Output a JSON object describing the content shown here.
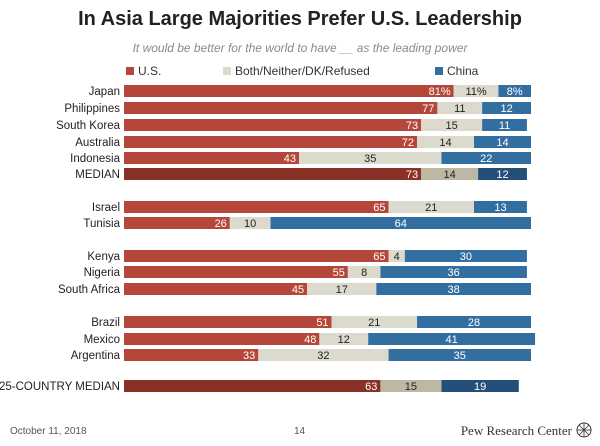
{
  "title": "In Asia Large Majorities Prefer U.S. Leadership",
  "subtitle": "It would be better for the world to have __ as the leading power",
  "legend": {
    "us": "U.S.",
    "both": "Both/Neither/DK/Refused",
    "china": "China"
  },
  "colors": {
    "us": "#b5473a",
    "us_median": "#893126",
    "both": "#dcd9cd",
    "both_median": "#bdb8a3",
    "china": "#336ea1",
    "china_median": "#234f78"
  },
  "footer": {
    "date": "October 11, 2018",
    "page": "14",
    "source": "Pew Research Center"
  },
  "chart_data": {
    "type": "bar",
    "orientation": "horizontal",
    "stacked": true,
    "xlim": [
      0,
      100
    ],
    "categories": [
      "Japan",
      "Philippines",
      "South Korea",
      "Australia",
      "Indonesia",
      "MEDIAN",
      "Israel",
      "Tunisia",
      "Kenya",
      "Nigeria",
      "South Africa",
      "Brazil",
      "Mexico",
      "Argentina",
      "25-COUNTRY MEDIAN"
    ],
    "series": [
      {
        "name": "U.S.",
        "values": [
          81,
          77,
          73,
          72,
          43,
          73,
          65,
          26,
          65,
          55,
          45,
          51,
          48,
          33,
          63
        ]
      },
      {
        "name": "Both/Neither/DK/Refused",
        "values": [
          11,
          11,
          15,
          14,
          35,
          14,
          21,
          10,
          4,
          8,
          17,
          21,
          12,
          32,
          15
        ]
      },
      {
        "name": "China",
        "values": [
          8,
          12,
          11,
          14,
          22,
          12,
          13,
          64,
          30,
          36,
          38,
          28,
          41,
          35,
          19
        ]
      }
    ],
    "labels": [
      [
        "81%",
        "11%",
        "8%"
      ],
      [
        "77",
        "11",
        "12"
      ],
      [
        "73",
        "15",
        "11"
      ],
      [
        "72",
        "14",
        "14"
      ],
      [
        "43",
        "35",
        "22"
      ],
      [
        "73",
        "14",
        "12"
      ],
      [
        "65",
        "21",
        "13"
      ],
      [
        "26",
        "10",
        "64"
      ],
      [
        "65",
        "4",
        "30"
      ],
      [
        "55",
        "8",
        "36"
      ],
      [
        "45",
        "17",
        "38"
      ],
      [
        "51",
        "21",
        "28"
      ],
      [
        "48",
        "12",
        "41"
      ],
      [
        "33",
        "32",
        "35"
      ],
      [
        "63",
        "15",
        "19"
      ]
    ],
    "median_rows": [
      "MEDIAN",
      "25-COUNTRY MEDIAN"
    ],
    "legend_position": "top"
  }
}
